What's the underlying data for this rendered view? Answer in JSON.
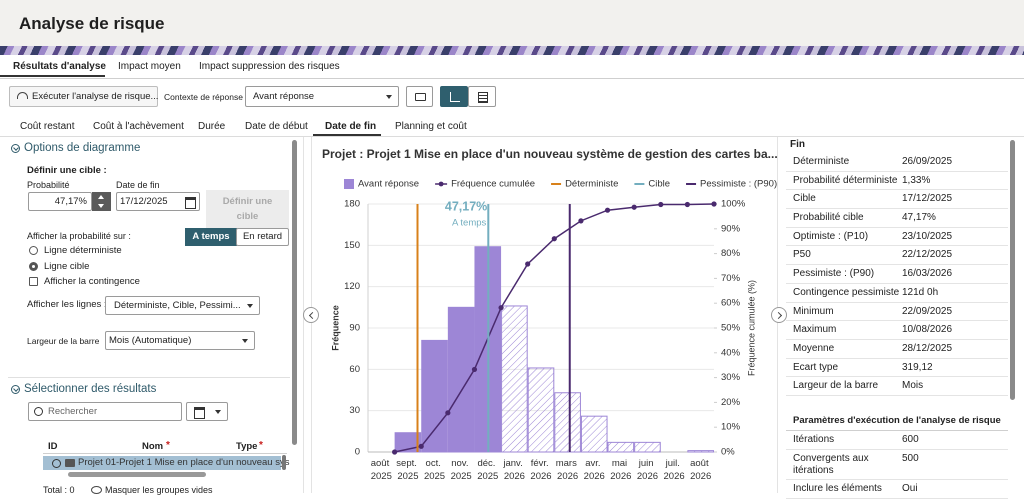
{
  "header": {
    "title": "Analyse de risque"
  },
  "tabs": [
    "Résultats d'analyse",
    "Impact moyen",
    "Impact suppression des risques"
  ],
  "toolbar": {
    "run_button": "Exécuter l'analyse de risque...",
    "context_label": "Contexte de réponse",
    "context_value": "Avant réponse"
  },
  "subtabs": [
    "Coût restant",
    "Coût à l'achèvement",
    "Durée",
    "Date de début",
    "Date de fin",
    "Planning et coût"
  ],
  "options": {
    "title": "Options de diagramme",
    "target_heading": "Définir une cible :",
    "probability_label": "Probabilité",
    "probability_value": "47,17%",
    "end_date_label": "Date de fin",
    "end_date_value": "17/12/2025",
    "define_button": "Définir une cible",
    "show_probability_label": "Afficher la probabilité sur :",
    "toggle": [
      "A temps",
      "En retard"
    ],
    "radios": [
      "Ligne déterministe",
      "Ligne cible"
    ],
    "checkbox": "Afficher la contingence",
    "lines_label": "Afficher les lignes :",
    "lines_value": "Déterministe, Cible, Pessimi...",
    "bar_width_label": "Largeur de la barre",
    "bar_width_value": "Mois (Automatique)"
  },
  "results": {
    "title": "Sélectionner des résultats",
    "search_placeholder": "Rechercher",
    "columns": [
      "ID",
      "Nom",
      "Type"
    ],
    "required_mark": "*",
    "row": "Projet 01-Projet 1 Mise en place d'un nouveau sys",
    "total": "Total : 0",
    "hide_empty": "Masquer les groupes vides"
  },
  "chart_data": {
    "type": "bar",
    "title": "Projet : Projet 1 Mise en place d'un nouveau système de gestion des cartes ba...",
    "categories": [
      "août 2025",
      "sept. 2025",
      "oct. 2025",
      "nov. 2025",
      "déc. 2025",
      "janv. 2026",
      "févr. 2026",
      "mars 2026",
      "avr. 2026",
      "mai 2026",
      "juin 2026",
      "juil. 2026",
      "août 2026"
    ],
    "series": [
      {
        "name": "Avant réponse",
        "color": "#9d86d6",
        "values": [
          0,
          14,
          81,
          105,
          149,
          106,
          61,
          43,
          26,
          7,
          7,
          0,
          1
        ]
      },
      {
        "name": "Fréquence cumulée",
        "type": "line",
        "axis": "y2",
        "color": "#4a2a6e",
        "values": [
          0,
          2.3,
          15.8,
          33.3,
          58.2,
          75.8,
          86,
          93.2,
          97.5,
          98.7,
          99.8,
          99.8,
          100
        ]
      }
    ],
    "markers": [
      {
        "name": "Déterministe",
        "color": "#d8811a",
        "x": 1.36
      },
      {
        "name": "Cible",
        "color": "#73aebf",
        "x": 4.02,
        "label": "47,17%",
        "sublabel": "A temps"
      },
      {
        "name": "Pessimiste : (P90)",
        "color": "#4a2a6e",
        "x": 7.08
      }
    ],
    "ylabel": "Fréquence",
    "y2label": "Fréquence cumulée (%)",
    "ylim": [
      0,
      180
    ],
    "yticks": [
      0,
      30,
      60,
      90,
      120,
      150,
      180
    ],
    "y2lim": [
      0,
      100
    ],
    "y2ticks": [
      {
        "value": 0,
        "label": "0%"
      },
      {
        "value": 10,
        "label": "10%"
      },
      {
        "value": 20,
        "label": "20%"
      },
      {
        "value": 30,
        "label": "30%"
      },
      {
        "value": 40,
        "label": "40%"
      },
      {
        "value": 50,
        "label": "50%"
      },
      {
        "value": 60,
        "label": "60%"
      },
      {
        "value": 70,
        "label": "70%"
      },
      {
        "value": 80,
        "label": "80%"
      },
      {
        "value": 90,
        "label": "90%"
      },
      {
        "value": 100,
        "label": "100%"
      }
    ],
    "grid": true
  },
  "summary": {
    "title": "Fin",
    "rows": [
      [
        "Déterministe",
        "26/09/2025"
      ],
      [
        "Probabilité déterministe",
        "1,33%"
      ],
      [
        "Cible",
        "17/12/2025"
      ],
      [
        "Probabilité cible",
        "47,17%"
      ],
      [
        "Optimiste : (P10)",
        "23/10/2025"
      ],
      [
        "P50",
        "22/12/2025"
      ],
      [
        "Pessimiste : (P90)",
        "16/03/2026"
      ],
      [
        "Contingence pessimiste",
        "121d 0h"
      ],
      [
        "Minimum",
        "22/09/2025"
      ],
      [
        "Maximum",
        "10/08/2026"
      ],
      [
        "Moyenne",
        "28/12/2025"
      ],
      [
        "Ecart type",
        "319,12"
      ],
      [
        "Largeur de la barre",
        "Mois"
      ]
    ]
  },
  "parameters": {
    "title": "Paramètres d'exécution de l'analyse de risque",
    "rows": [
      [
        "Itérations",
        "600"
      ],
      [
        "Convergents aux itérations",
        "500"
      ],
      [
        "Inclure les éléments",
        "Oui"
      ]
    ]
  }
}
